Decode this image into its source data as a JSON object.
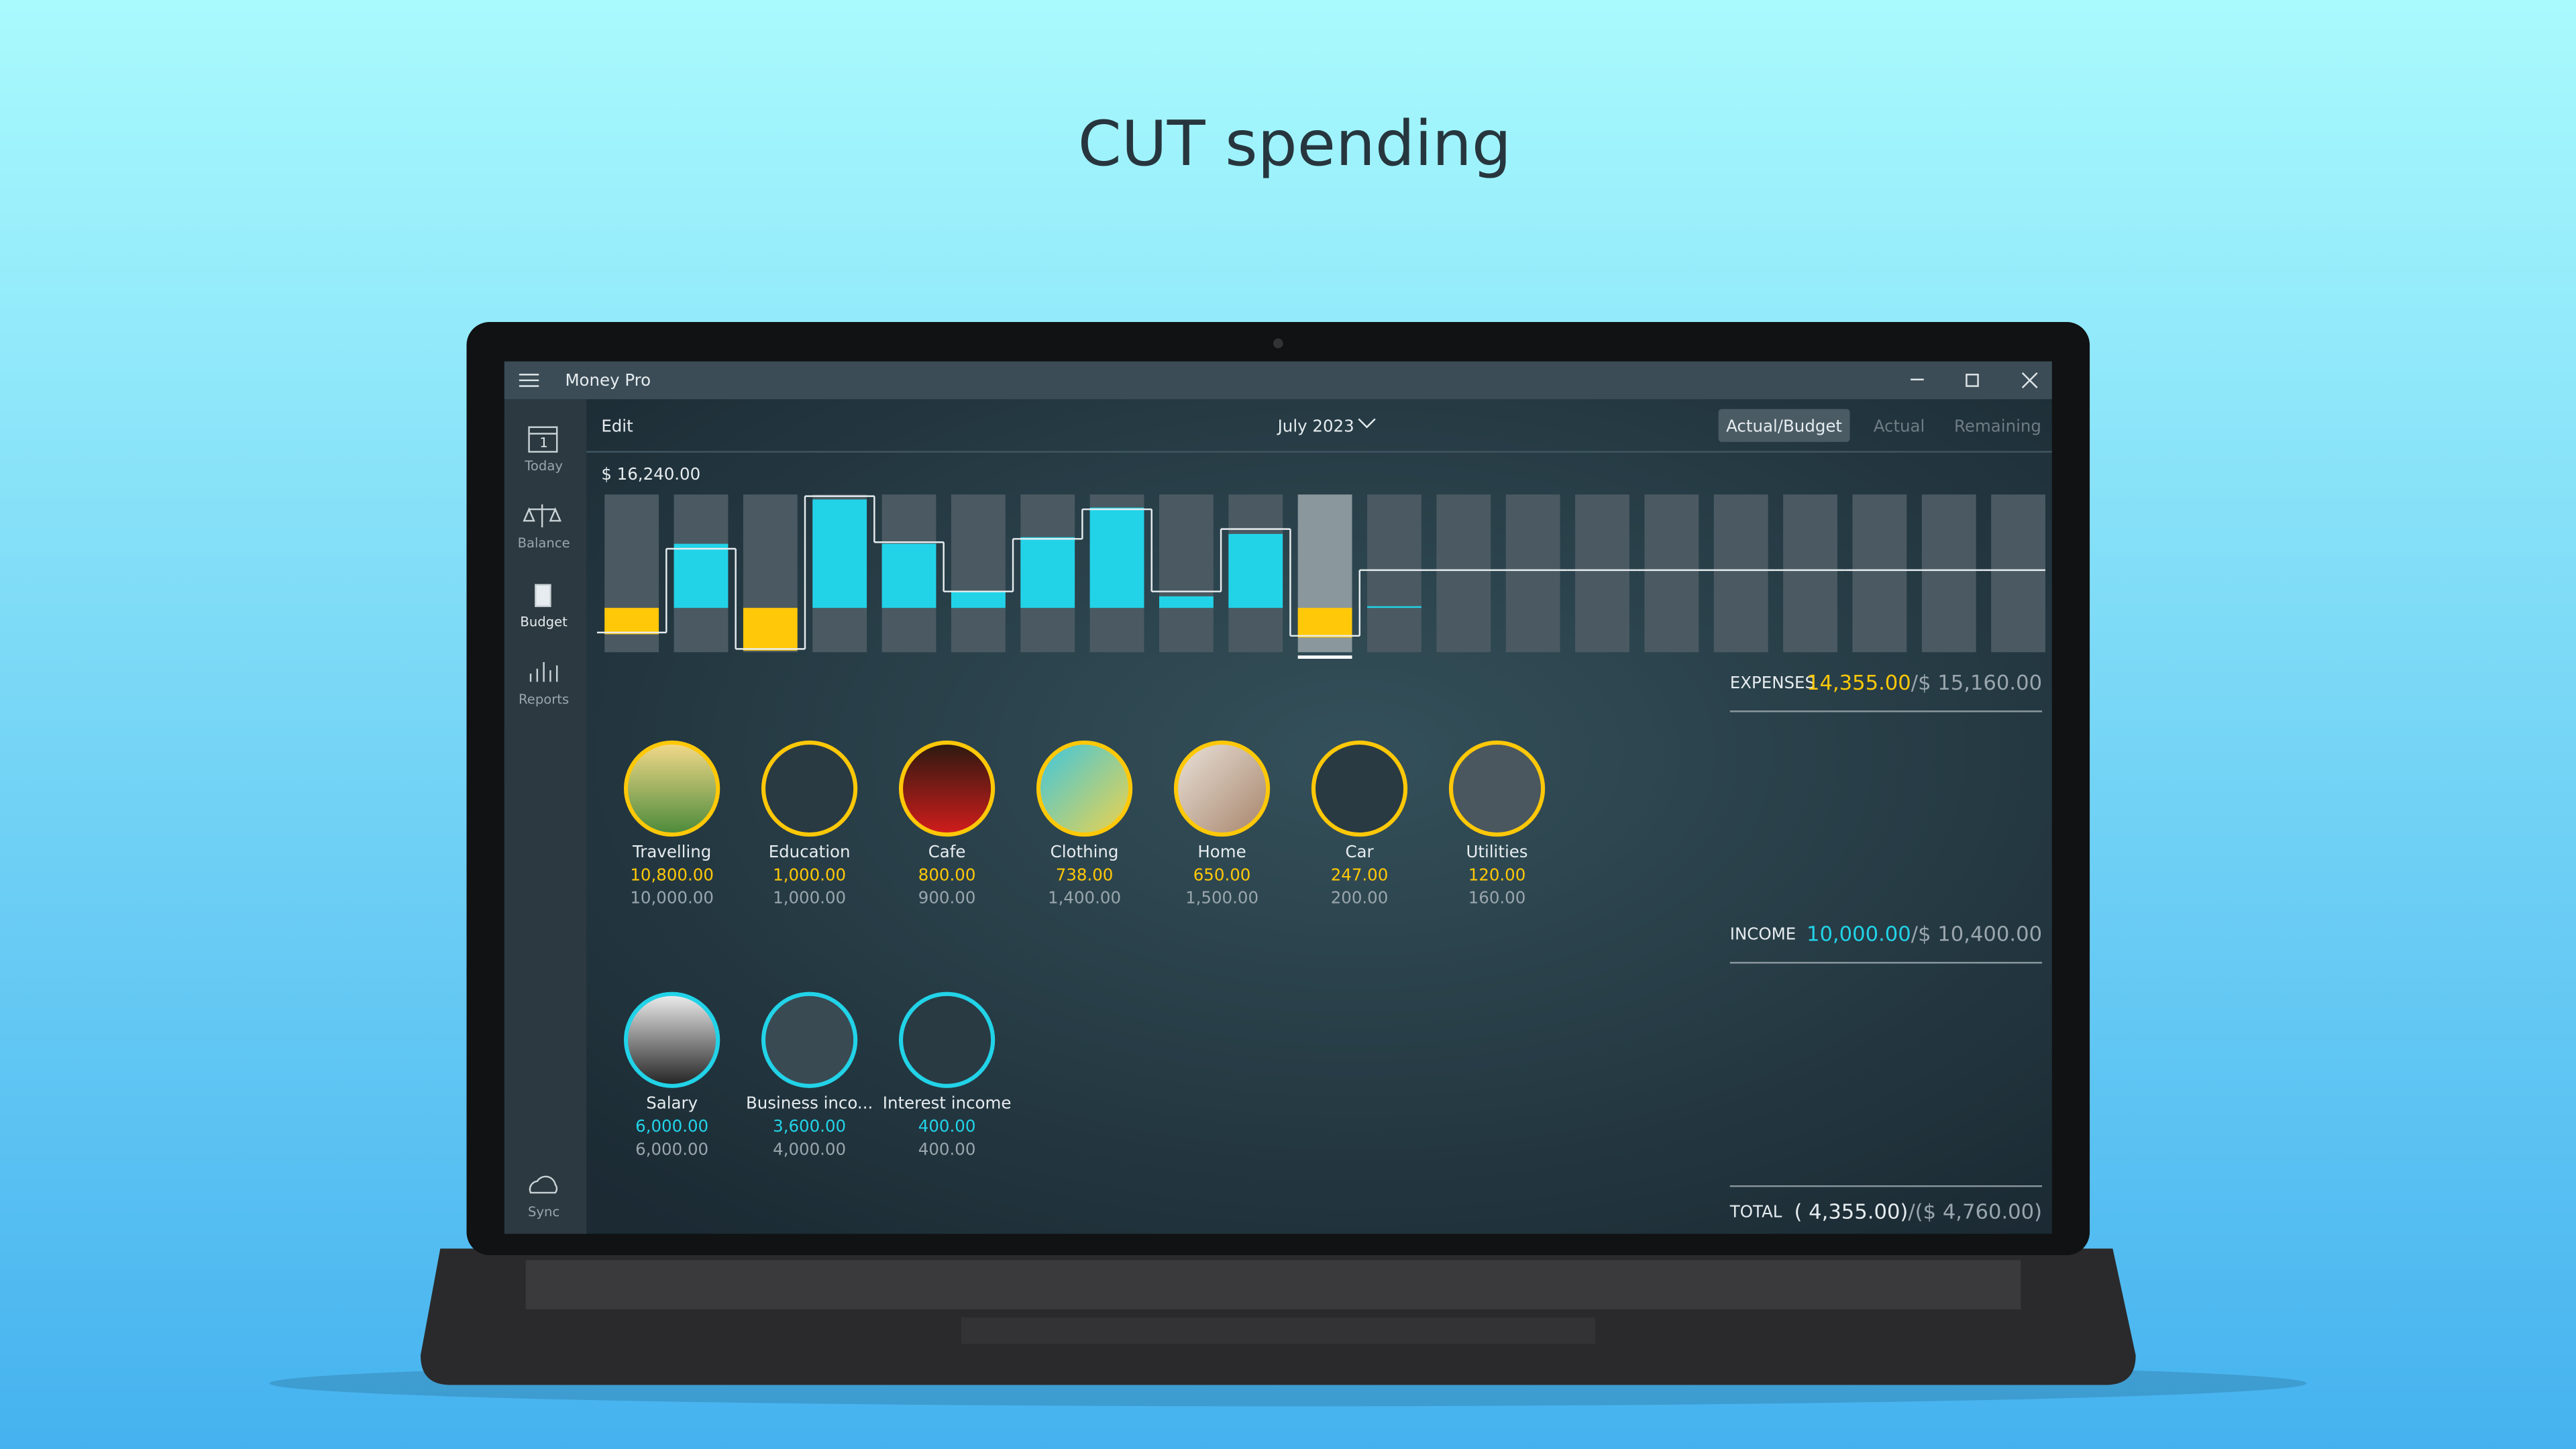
{
  "headline": "CUT spending",
  "app": {
    "title": "Money Pro",
    "sidebar": [
      {
        "label": "Today",
        "icon_text": "1"
      },
      {
        "label": "Balance"
      },
      {
        "label": "Budget"
      },
      {
        "label": "Reports"
      }
    ],
    "sync": "Sync"
  },
  "toolbar": {
    "edit": "Edit",
    "period": "July 2023",
    "tabs": [
      "Actual/Budget",
      "Actual",
      "Remaining"
    ]
  },
  "chart_data": {
    "type": "bar",
    "max_label": "$ 16,240.00",
    "ylim": [
      -6350,
      16240
    ],
    "selected": 10,
    "income_color": "#22d3e8",
    "expense_color": "#ffc808",
    "income": [
      0,
      9180,
      0,
      15530,
      9180,
      2350,
      10120,
      14360,
      1650,
      10590,
      0,
      240,
      null,
      null,
      null,
      null,
      null,
      null,
      null,
      null,
      null
    ],
    "expense": [
      3770,
      0,
      6120,
      0,
      0,
      0,
      0,
      0,
      0,
      0,
      4240,
      0,
      null,
      null,
      null,
      null,
      null,
      null,
      null,
      null,
      null
    ],
    "balance": [
      -3530,
      8470,
      -5880,
      16000,
      9410,
      2350,
      9880,
      14120,
      2350,
      11290,
      -4000,
      5410,
      5410,
      5410,
      5410,
      5410,
      5410,
      5410,
      5410,
      5410,
      5410
    ]
  },
  "summary": {
    "expenses": {
      "label": "EXPENSES",
      "actual": "14,355.00",
      "budget": "/$ 15,160.00"
    },
    "income": {
      "label": "INCOME",
      "actual": "10,000.00",
      "budget": "/$ 10,400.00"
    },
    "total": {
      "label": "TOTAL",
      "actual": "( 4,355.00)",
      "budget": "/($ 4,760.00)"
    }
  },
  "expense_categories": {
    "color": "#ffc808",
    "items": [
      {
        "name": "Travelling",
        "actual": "10,800.00",
        "budget": "10,000.00"
      },
      {
        "name": "Education",
        "actual": "1,000.00",
        "budget": "1,000.00"
      },
      {
        "name": "Cafe",
        "actual": "800.00",
        "budget": "900.00"
      },
      {
        "name": "Clothing",
        "actual": "738.00",
        "budget": "1,400.00"
      },
      {
        "name": "Home",
        "actual": "650.00",
        "budget": "1,500.00"
      },
      {
        "name": "Car",
        "actual": "247.00",
        "budget": "200.00"
      },
      {
        "name": "Utilities",
        "actual": "120.00",
        "budget": "160.00"
      }
    ]
  },
  "income_categories": {
    "color": "#22d3e8",
    "items": [
      {
        "name": "Salary",
        "actual": "6,000.00",
        "budget": "6,000.00"
      },
      {
        "name": "Business inco...",
        "actual": "3,600.00",
        "budget": "4,000.00"
      },
      {
        "name": "Interest income",
        "actual": "400.00",
        "budget": "400.00"
      }
    ]
  }
}
